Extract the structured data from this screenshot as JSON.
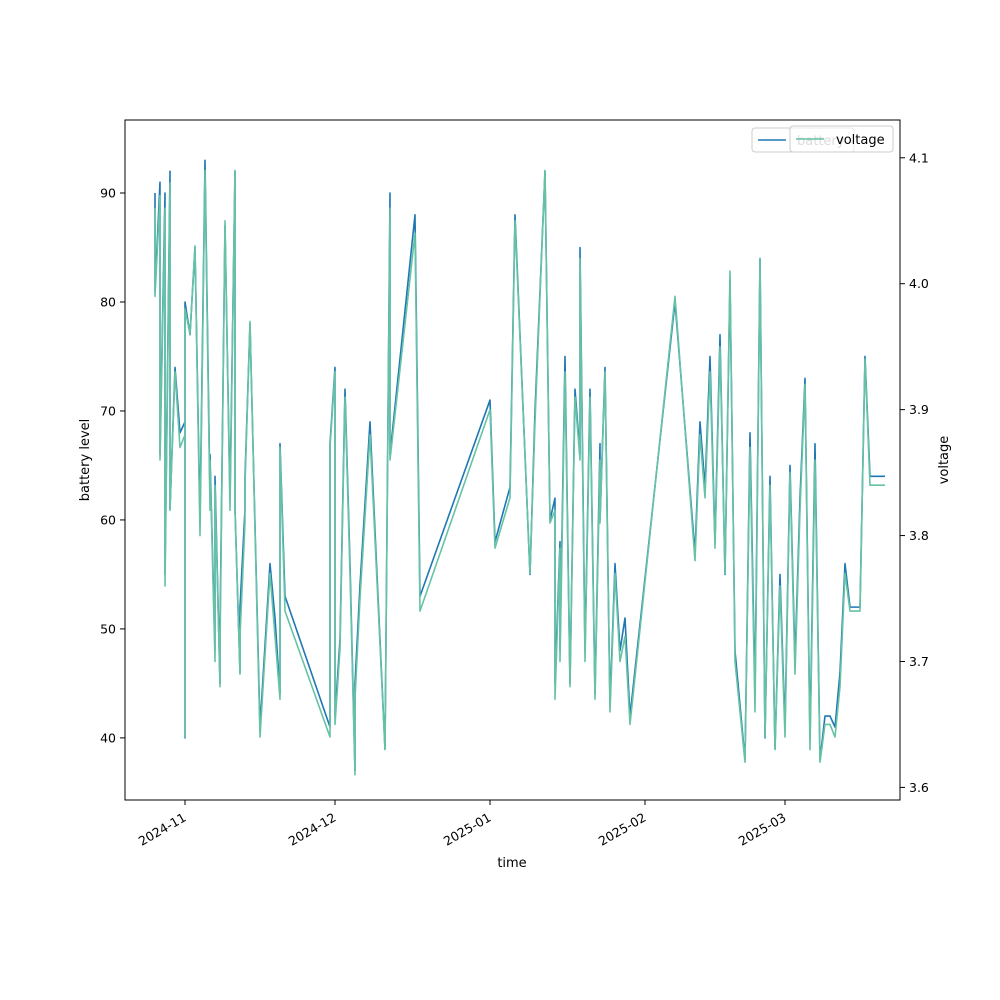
{
  "chart_data": {
    "type": "line",
    "xlabel": "time",
    "ylabel_left": "battery level",
    "ylabel_right": "voltage",
    "x_ticks": [
      "2024-11",
      "2024-12",
      "2025-01",
      "2025-02",
      "2025-03"
    ],
    "left_yticks": [
      40,
      50,
      60,
      70,
      80,
      90
    ],
    "right_yticks": [
      3.6,
      3.7,
      3.8,
      3.9,
      4.0,
      4.1
    ],
    "xlim": [
      "2024-10-20",
      "2025-03-24"
    ],
    "ylim_left": [
      34.3,
      96.7
    ],
    "ylim_right": [
      3.59,
      4.13
    ],
    "grid": false,
    "legend_placement": "top-right",
    "legends": [
      {
        "entries": [
          {
            "label": "battery",
            "color": "#1f77b4"
          }
        ]
      },
      {
        "entries": [
          {
            "label": "voltage",
            "color": "#66c2a5"
          }
        ]
      }
    ],
    "series": [
      {
        "name": "battery",
        "axis": "left",
        "color": "#1f77b4",
        "x": [
          "2024-10-26",
          "2024-10-26",
          "2024-10-27",
          "2024-10-27",
          "2024-10-28",
          "2024-10-28",
          "2024-10-29",
          "2024-10-29",
          "2024-10-30",
          "2024-10-31",
          "2024-11-01",
          "2024-11-01",
          "2024-11-01",
          "2024-11-02",
          "2024-11-03",
          "2024-11-04",
          "2024-11-05",
          "2024-11-06",
          "2024-11-06",
          "2024-11-07",
          "2024-11-07",
          "2024-11-08",
          "2024-11-08",
          "2024-11-09",
          "2024-11-10",
          "2024-11-11",
          "2024-11-11",
          "2024-11-12",
          "2024-11-12",
          "2024-11-13",
          "2024-11-13",
          "2024-11-14",
          "2024-11-16",
          "2024-11-18",
          "2024-11-19",
          "2024-11-20",
          "2024-11-20",
          "2024-11-21",
          "2024-11-30",
          "2024-11-30",
          "2024-12-01",
          "2024-12-01",
          "2024-12-02",
          "2024-12-03",
          "2024-12-04",
          "2024-12-05",
          "2024-12-05",
          "2024-12-06",
          "2024-12-08",
          "2024-12-11",
          "2024-12-12",
          "2024-12-12",
          "2024-12-17",
          "2024-12-18",
          "2025-01-01",
          "2025-01-02",
          "2025-01-05",
          "2025-01-06",
          "2025-01-09",
          "2025-01-10",
          "2025-01-12",
          "2025-01-13",
          "2025-01-14",
          "2025-01-14",
          "2025-01-15",
          "2025-01-15",
          "2025-01-16",
          "2025-01-17",
          "2025-01-18",
          "2025-01-19",
          "2025-01-19",
          "2025-01-20",
          "2025-01-21",
          "2025-01-22",
          "2025-01-23",
          "2025-01-23",
          "2025-01-24",
          "2025-01-25",
          "2025-01-26",
          "2025-01-27",
          "2025-01-28",
          "2025-01-29",
          "2025-02-07",
          "2025-02-11",
          "2025-02-12",
          "2025-02-13",
          "2025-02-14",
          "2025-02-15",
          "2025-02-16",
          "2025-02-17",
          "2025-02-18",
          "2025-02-19",
          "2025-02-21",
          "2025-02-22",
          "2025-02-23",
          "2025-02-24",
          "2025-02-25",
          "2025-02-26",
          "2025-02-27",
          "2025-02-28",
          "2025-03-01",
          "2025-03-02",
          "2025-03-03",
          "2025-03-04",
          "2025-03-05",
          "2025-03-06",
          "2025-03-07",
          "2025-03-08",
          "2025-03-09",
          "2025-03-10",
          "2025-03-11",
          "2025-03-12",
          "2025-03-13",
          "2025-03-14",
          "2025-03-15",
          "2025-03-16",
          "2025-03-17",
          "2025-03-18",
          "2025-03-19",
          "2025-03-20",
          "2025-03-21"
        ],
        "values": [
          90,
          81,
          91,
          66,
          90,
          55,
          92,
          61,
          74,
          68,
          69,
          40,
          80,
          77,
          85,
          60,
          93,
          62,
          66,
          48,
          64,
          45,
          50,
          87,
          62,
          92,
          61,
          46,
          52,
          61,
          64,
          78,
          41,
          56,
          51,
          44,
          67,
          53,
          41,
          67,
          74,
          42,
          49,
          72,
          56,
          37,
          45,
          54,
          69,
          39,
          90,
          66,
          88,
          53,
          71,
          58,
          63,
          88,
          55,
          70,
          92,
          60,
          62,
          45,
          58,
          48,
          75,
          45,
          72,
          66,
          85,
          48,
          72,
          44,
          67,
          60,
          74,
          43,
          56,
          48,
          51,
          42,
          80,
          57,
          69,
          63,
          75,
          58,
          77,
          55,
          82,
          48,
          38,
          68,
          44,
          84,
          40,
          64,
          39,
          55,
          41,
          65,
          47,
          62,
          73,
          40,
          67,
          38,
          42,
          42,
          41,
          46,
          56,
          52,
          52,
          52,
          75,
          64,
          64,
          64,
          64
        ],
        "dashes": "14,6,6,6"
      },
      {
        "name": "voltage",
        "axis": "right",
        "color": "#66c2a5",
        "x": [
          "2024-10-26",
          "2024-10-26",
          "2024-10-27",
          "2024-10-27",
          "2024-10-28",
          "2024-10-28",
          "2024-10-29",
          "2024-10-29",
          "2024-10-30",
          "2024-10-31",
          "2024-11-01",
          "2024-11-01",
          "2024-11-01",
          "2024-11-02",
          "2024-11-03",
          "2024-11-04",
          "2024-11-05",
          "2024-11-06",
          "2024-11-06",
          "2024-11-07",
          "2024-11-07",
          "2024-11-08",
          "2024-11-08",
          "2024-11-09",
          "2024-11-10",
          "2024-11-11",
          "2024-11-11",
          "2024-11-12",
          "2024-11-12",
          "2024-11-13",
          "2024-11-13",
          "2024-11-14",
          "2024-11-16",
          "2024-11-18",
          "2024-11-19",
          "2024-11-20",
          "2024-11-20",
          "2024-11-21",
          "2024-11-30",
          "2024-11-30",
          "2024-12-01",
          "2024-12-01",
          "2024-12-02",
          "2024-12-03",
          "2024-12-04",
          "2024-12-05",
          "2024-12-05",
          "2024-12-06",
          "2024-12-08",
          "2024-12-11",
          "2024-12-12",
          "2024-12-12",
          "2024-12-17",
          "2024-12-18",
          "2025-01-01",
          "2025-01-02",
          "2025-01-05",
          "2025-01-06",
          "2025-01-09",
          "2025-01-10",
          "2025-01-12",
          "2025-01-13",
          "2025-01-14",
          "2025-01-14",
          "2025-01-15",
          "2025-01-15",
          "2025-01-16",
          "2025-01-17",
          "2025-01-18",
          "2025-01-19",
          "2025-01-19",
          "2025-01-20",
          "2025-01-21",
          "2025-01-22",
          "2025-01-23",
          "2025-01-23",
          "2025-01-24",
          "2025-01-25",
          "2025-01-26",
          "2025-01-27",
          "2025-01-28",
          "2025-01-29",
          "2025-02-07",
          "2025-02-11",
          "2025-02-12",
          "2025-02-13",
          "2025-02-14",
          "2025-02-15",
          "2025-02-16",
          "2025-02-17",
          "2025-02-18",
          "2025-02-19",
          "2025-02-21",
          "2025-02-22",
          "2025-02-23",
          "2025-02-24",
          "2025-02-25",
          "2025-02-26",
          "2025-02-27",
          "2025-02-28",
          "2025-03-01",
          "2025-03-02",
          "2025-03-03",
          "2025-03-04",
          "2025-03-05",
          "2025-03-06",
          "2025-03-07",
          "2025-03-08",
          "2025-03-09",
          "2025-03-10",
          "2025-03-11",
          "2025-03-12",
          "2025-03-13",
          "2025-03-14",
          "2025-03-15",
          "2025-03-16",
          "2025-03-17",
          "2025-03-18",
          "2025-03-19",
          "2025-03-20",
          "2025-03-21"
        ],
        "values": [
          4.06,
          3.99,
          4.07,
          3.86,
          4.06,
          3.76,
          4.08,
          3.82,
          3.93,
          3.87,
          3.88,
          3.64,
          3.98,
          3.96,
          4.03,
          3.8,
          4.09,
          3.82,
          3.86,
          3.7,
          3.84,
          3.68,
          3.71,
          4.05,
          3.82,
          4.09,
          3.82,
          3.69,
          3.72,
          3.81,
          3.84,
          3.97,
          3.64,
          3.77,
          3.72,
          3.67,
          3.87,
          3.74,
          3.64,
          3.87,
          3.93,
          3.65,
          3.71,
          3.91,
          3.77,
          3.61,
          3.67,
          3.75,
          3.88,
          3.63,
          4.06,
          3.86,
          4.04,
          3.74,
          3.9,
          3.79,
          3.83,
          4.05,
          3.77,
          3.89,
          4.09,
          3.81,
          3.82,
          3.67,
          3.79,
          3.7,
          3.93,
          3.68,
          3.91,
          3.86,
          4.02,
          3.7,
          3.91,
          3.67,
          3.86,
          3.81,
          3.93,
          3.66,
          3.77,
          3.7,
          3.72,
          3.65,
          3.99,
          3.78,
          3.88,
          3.83,
          3.93,
          3.79,
          3.95,
          3.77,
          4.01,
          3.7,
          3.62,
          3.87,
          3.66,
          4.02,
          3.64,
          3.84,
          3.63,
          3.76,
          3.64,
          3.85,
          3.69,
          3.82,
          3.92,
          3.63,
          3.86,
          3.62,
          3.65,
          3.65,
          3.64,
          3.68,
          3.77,
          3.74,
          3.74,
          3.74,
          3.94,
          3.84,
          3.84,
          3.84,
          3.84
        ]
      }
    ]
  }
}
